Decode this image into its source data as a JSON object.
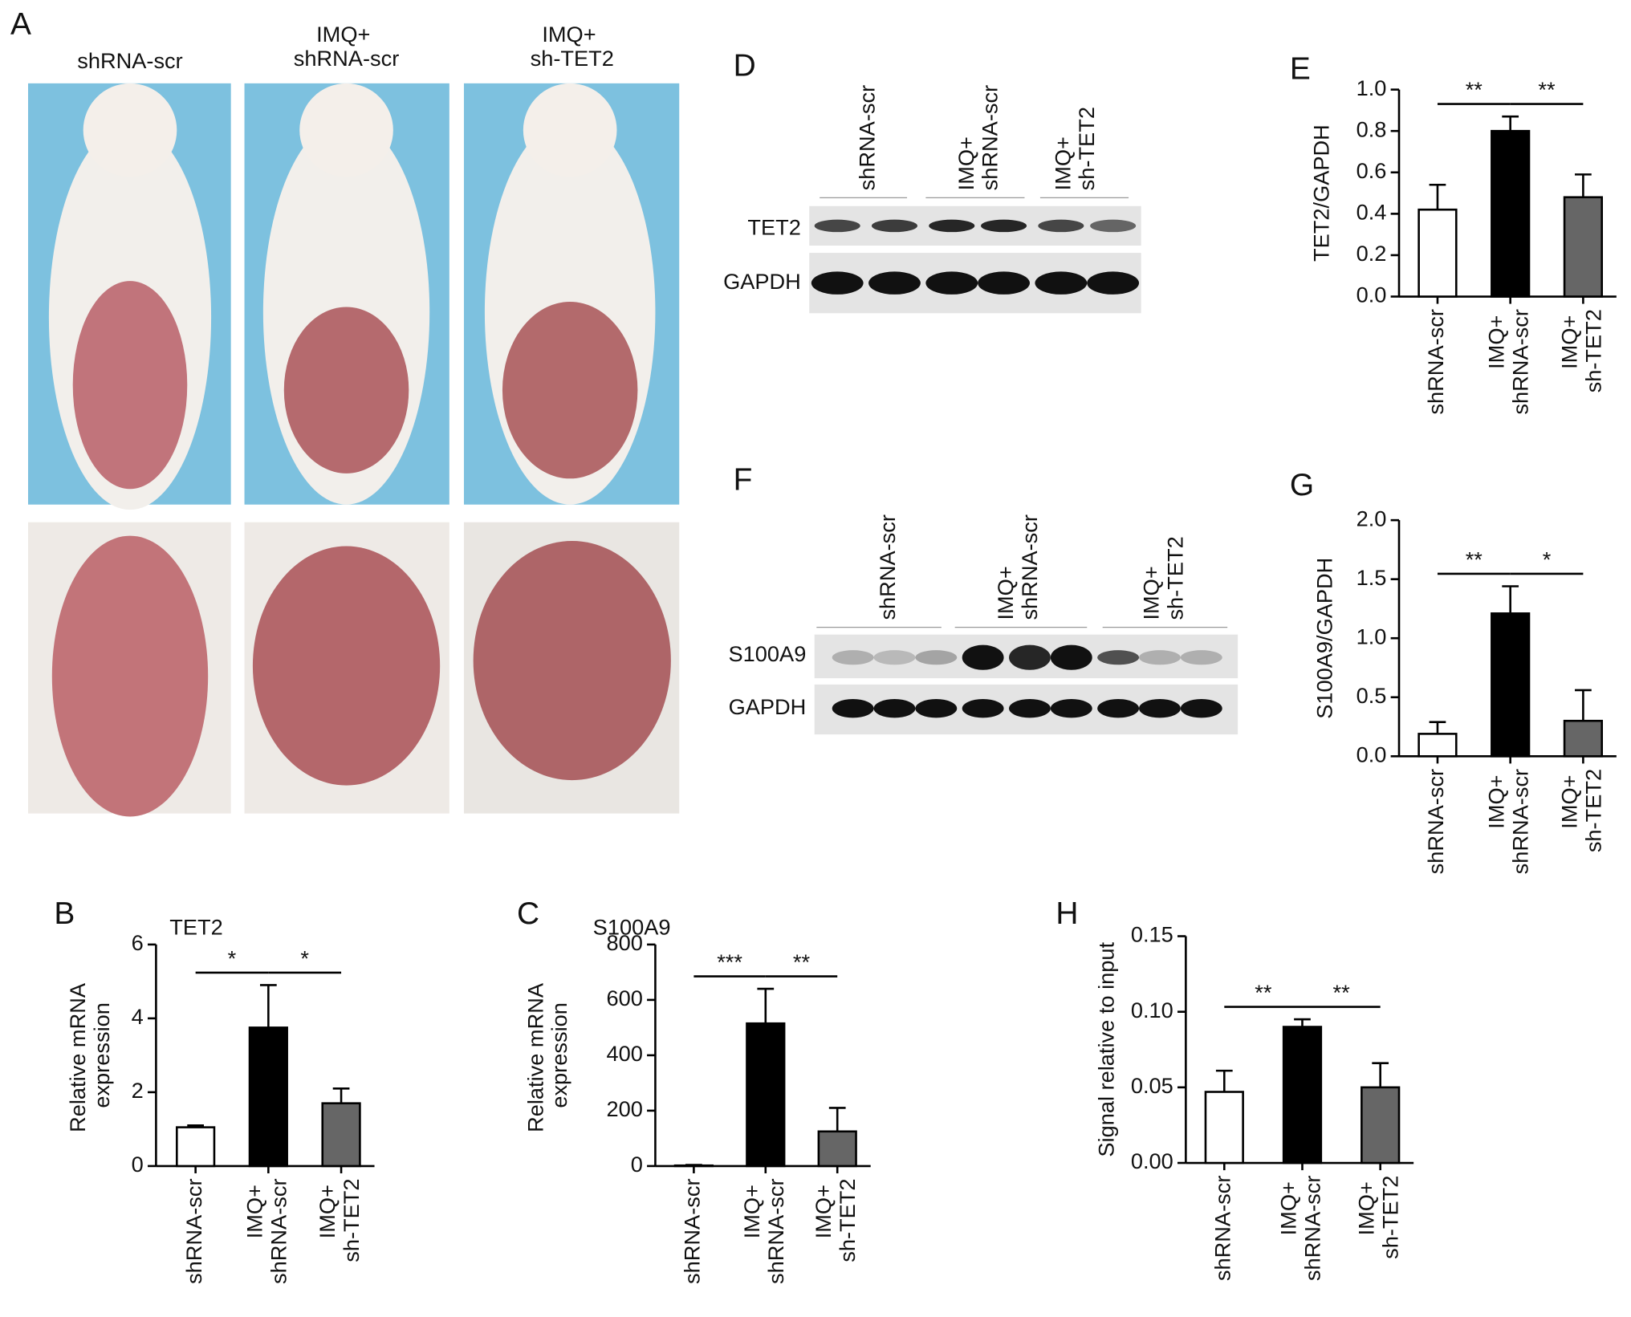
{
  "panel_a": {
    "label": "A",
    "groups": [
      "shRNA-scr",
      "IMQ+\nshRNA-scr",
      "IMQ+\nsh-TET2"
    ]
  },
  "panel_d": {
    "label": "D",
    "lanes": [
      "shRNA-scr",
      "IMQ+\nshRNA-scr",
      "IMQ+\nsh-TET2"
    ],
    "rows": [
      "TET2",
      "GAPDH"
    ]
  },
  "panel_f": {
    "label": "F",
    "lanes": [
      "shRNA-scr",
      "IMQ+\nshRNA-scr",
      "IMQ+\nsh-TET2"
    ],
    "rows": [
      "S100A9",
      "GAPDH"
    ]
  },
  "chart_data": [
    {
      "type": "bar",
      "panel_label": "B",
      "title": "TET2",
      "y_label": "Relative mRNA\nexpression",
      "categories": [
        "shRNA-scr",
        "IMQ+\nshRNA-scr",
        "IMQ+\nsh-TET2"
      ],
      "values": [
        1.05,
        3.75,
        1.7
      ],
      "errors": [
        0.05,
        1.15,
        0.4
      ],
      "colors": [
        "#ffffff",
        "#000000",
        "#666666"
      ],
      "ylim": [
        0,
        6
      ],
      "yticks": [
        0,
        2,
        4,
        6
      ],
      "significance": [
        "*",
        "*"
      ]
    },
    {
      "type": "bar",
      "panel_label": "C",
      "title": "S100A9",
      "y_label": "Relative mRNA\nexpression",
      "categories": [
        "shRNA-scr",
        "IMQ+\nshRNA-scr",
        "IMQ+\nsh-TET2"
      ],
      "values": [
        2,
        515,
        125
      ],
      "errors": [
        2,
        125,
        85
      ],
      "colors": [
        "#ffffff",
        "#000000",
        "#666666"
      ],
      "ylim": [
        0,
        800
      ],
      "yticks": [
        0,
        200,
        400,
        600,
        800
      ],
      "significance": [
        "***",
        "**"
      ]
    },
    {
      "type": "bar",
      "panel_label": "E",
      "y_label": "TET2/GAPDH",
      "categories": [
        "shRNA-scr",
        "IMQ+\nshRNA-scr",
        "IMQ+\nsh-TET2"
      ],
      "values": [
        0.42,
        0.8,
        0.48
      ],
      "errors": [
        0.12,
        0.07,
        0.11
      ],
      "colors": [
        "#ffffff",
        "#000000",
        "#666666"
      ],
      "ylim": [
        0,
        1
      ],
      "yticks": [
        {
          "value": 0,
          "label": "0.0"
        },
        0.2,
        0.4,
        0.6,
        0.8,
        {
          "value": 1,
          "label": "1.0"
        }
      ],
      "significance": [
        "**",
        "**"
      ]
    },
    {
      "type": "bar",
      "panel_label": "G",
      "y_label": "S100A9/GAPDH",
      "categories": [
        "shRNA-scr",
        "IMQ+\nshRNA-scr",
        "IMQ+\nsh-TET2"
      ],
      "values": [
        0.19,
        1.21,
        0.3
      ],
      "errors": [
        0.1,
        0.23,
        0.26
      ],
      "colors": [
        "#ffffff",
        "#000000",
        "#666666"
      ],
      "ylim": [
        0,
        2
      ],
      "yticks": [
        {
          "value": 0,
          "label": "0.0"
        },
        0.5,
        {
          "value": 1,
          "label": "1.0"
        },
        1.5,
        {
          "value": 2,
          "label": "2.0"
        }
      ],
      "significance": [
        "**",
        "*"
      ]
    },
    {
      "type": "bar",
      "panel_label": "H",
      "y_label": "Signal relative to input",
      "categories": [
        "shRNA-scr",
        "IMQ+\nshRNA-scr",
        "IMQ+\nsh-TET2"
      ],
      "values": [
        0.047,
        0.09,
        0.05
      ],
      "errors": [
        0.014,
        0.005,
        0.016
      ],
      "colors": [
        "#ffffff",
        "#000000",
        "#666666"
      ],
      "ylim": [
        0,
        0.15
      ],
      "yticks": [
        {
          "value": 0,
          "label": "0.00"
        },
        0.05,
        {
          "value": 0.1,
          "label": "0.10"
        },
        0.15
      ],
      "significance": [
        "**",
        "**"
      ]
    }
  ]
}
